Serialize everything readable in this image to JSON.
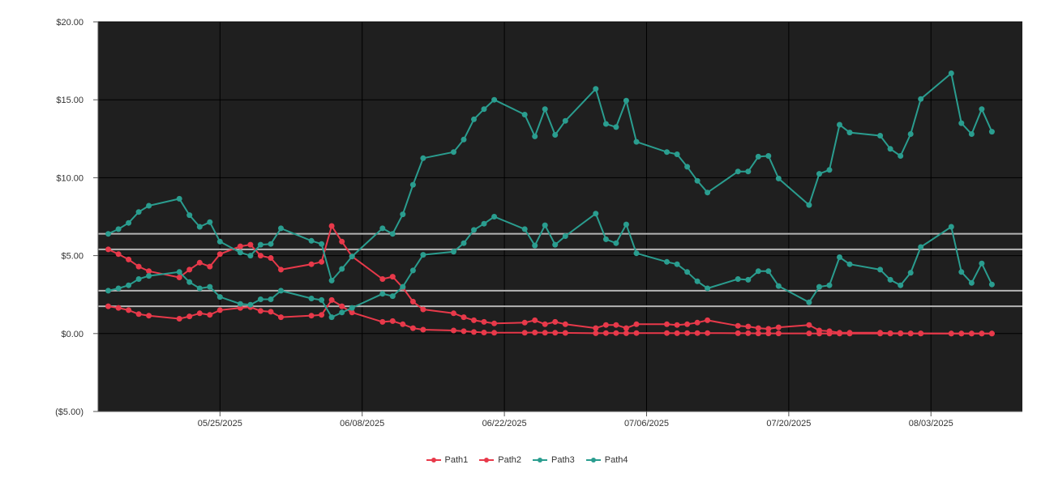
{
  "chart_data": {
    "type": "line",
    "title": "",
    "xlabel": "",
    "ylabel": "",
    "ylim": [
      -5,
      20
    ],
    "y_ticks": [
      -5,
      0,
      5,
      10,
      15,
      20
    ],
    "y_tick_labels": [
      "($5.00)",
      "$0.00",
      "$5.00",
      "$10.00",
      "$15.00",
      "$20.00"
    ],
    "x_range": [
      "2025-05-13",
      "2025-08-12"
    ],
    "x_ticks": [
      "2025-05-25",
      "2025-06-08",
      "2025-06-22",
      "2025-07-06",
      "2025-07-20",
      "2025-08-03"
    ],
    "x_tick_labels": [
      "05/25/2025",
      "06/08/2025",
      "06/22/2025",
      "07/06/2025",
      "07/20/2025",
      "08/03/2025"
    ],
    "grid": true,
    "legend_position": "bottom",
    "reference_lines": [
      6.4,
      5.4,
      2.75,
      1.75
    ],
    "background": "#1f1f1f",
    "series": [
      {
        "name": "Path1",
        "color": "#e8394a",
        "points": [
          [
            "2025-05-14",
            5.4
          ],
          [
            "2025-05-15",
            5.1
          ],
          [
            "2025-05-16",
            4.75
          ],
          [
            "2025-05-17",
            4.3
          ],
          [
            "2025-05-18",
            4.0
          ],
          [
            "2025-05-21",
            3.6
          ],
          [
            "2025-05-22",
            4.1
          ],
          [
            "2025-05-23",
            4.55
          ],
          [
            "2025-05-24",
            4.3
          ],
          [
            "2025-05-25",
            5.1
          ],
          [
            "2025-05-27",
            5.6
          ],
          [
            "2025-05-28",
            5.7
          ],
          [
            "2025-05-29",
            5.0
          ],
          [
            "2025-05-30",
            4.85
          ],
          [
            "2025-05-31",
            4.1
          ],
          [
            "2025-06-03",
            4.45
          ],
          [
            "2025-06-04",
            4.6
          ],
          [
            "2025-06-05",
            6.9
          ],
          [
            "2025-06-06",
            5.9
          ],
          [
            "2025-06-07",
            4.95
          ],
          [
            "2025-06-10",
            3.5
          ],
          [
            "2025-06-11",
            3.65
          ],
          [
            "2025-06-12",
            2.95
          ],
          [
            "2025-06-13",
            2.05
          ],
          [
            "2025-06-14",
            1.55
          ],
          [
            "2025-06-17",
            1.3
          ],
          [
            "2025-06-18",
            1.05
          ],
          [
            "2025-06-19",
            0.85
          ],
          [
            "2025-06-20",
            0.75
          ],
          [
            "2025-06-21",
            0.65
          ],
          [
            "2025-06-24",
            0.7
          ],
          [
            "2025-06-25",
            0.85
          ],
          [
            "2025-06-26",
            0.6
          ],
          [
            "2025-06-27",
            0.75
          ],
          [
            "2025-06-28",
            0.6
          ],
          [
            "2025-07-01",
            0.35
          ],
          [
            "2025-07-02",
            0.55
          ],
          [
            "2025-07-03",
            0.55
          ],
          [
            "2025-07-04",
            0.35
          ],
          [
            "2025-07-05",
            0.6
          ],
          [
            "2025-07-08",
            0.6
          ],
          [
            "2025-07-09",
            0.55
          ],
          [
            "2025-07-10",
            0.6
          ],
          [
            "2025-07-11",
            0.7
          ],
          [
            "2025-07-12",
            0.85
          ],
          [
            "2025-07-15",
            0.5
          ],
          [
            "2025-07-16",
            0.45
          ],
          [
            "2025-07-17",
            0.35
          ],
          [
            "2025-07-18",
            0.3
          ],
          [
            "2025-07-19",
            0.4
          ],
          [
            "2025-07-22",
            0.55
          ],
          [
            "2025-07-23",
            0.2
          ],
          [
            "2025-07-24",
            0.15
          ],
          [
            "2025-07-25",
            0.05
          ],
          [
            "2025-07-26",
            0.05
          ],
          [
            "2025-07-29",
            0.05
          ],
          [
            "2025-07-30",
            0.02
          ],
          [
            "2025-07-31",
            0.02
          ],
          [
            "2025-08-01",
            0.01
          ],
          [
            "2025-08-02",
            0.01
          ],
          [
            "2025-08-05",
            0.0
          ],
          [
            "2025-08-06",
            0.0
          ],
          [
            "2025-08-07",
            0.0
          ],
          [
            "2025-08-08",
            0.0
          ],
          [
            "2025-08-09",
            0.0
          ]
        ]
      },
      {
        "name": "Path2",
        "color": "#e8394a",
        "points": [
          [
            "2025-05-14",
            1.75
          ],
          [
            "2025-05-15",
            1.65
          ],
          [
            "2025-05-16",
            1.5
          ],
          [
            "2025-05-17",
            1.25
          ],
          [
            "2025-05-18",
            1.15
          ],
          [
            "2025-05-21",
            0.95
          ],
          [
            "2025-05-22",
            1.1
          ],
          [
            "2025-05-23",
            1.3
          ],
          [
            "2025-05-24",
            1.2
          ],
          [
            "2025-05-25",
            1.5
          ],
          [
            "2025-05-27",
            1.65
          ],
          [
            "2025-05-28",
            1.7
          ],
          [
            "2025-05-29",
            1.45
          ],
          [
            "2025-05-30",
            1.4
          ],
          [
            "2025-05-31",
            1.05
          ],
          [
            "2025-06-03",
            1.15
          ],
          [
            "2025-06-04",
            1.2
          ],
          [
            "2025-06-05",
            2.15
          ],
          [
            "2025-06-06",
            1.75
          ],
          [
            "2025-06-07",
            1.35
          ],
          [
            "2025-06-10",
            0.75
          ],
          [
            "2025-06-11",
            0.8
          ],
          [
            "2025-06-12",
            0.6
          ],
          [
            "2025-06-13",
            0.35
          ],
          [
            "2025-06-14",
            0.25
          ],
          [
            "2025-06-17",
            0.2
          ],
          [
            "2025-06-18",
            0.15
          ],
          [
            "2025-06-19",
            0.1
          ],
          [
            "2025-06-20",
            0.07
          ],
          [
            "2025-06-21",
            0.05
          ],
          [
            "2025-06-24",
            0.05
          ],
          [
            "2025-06-25",
            0.07
          ],
          [
            "2025-06-26",
            0.05
          ],
          [
            "2025-06-27",
            0.05
          ],
          [
            "2025-06-28",
            0.04
          ],
          [
            "2025-07-01",
            0.02
          ],
          [
            "2025-07-02",
            0.03
          ],
          [
            "2025-07-03",
            0.03
          ],
          [
            "2025-07-04",
            0.02
          ],
          [
            "2025-07-05",
            0.03
          ],
          [
            "2025-07-08",
            0.03
          ],
          [
            "2025-07-09",
            0.02
          ],
          [
            "2025-07-10",
            0.03
          ],
          [
            "2025-07-11",
            0.03
          ],
          [
            "2025-07-12",
            0.03
          ],
          [
            "2025-07-15",
            0.02
          ],
          [
            "2025-07-16",
            0.02
          ],
          [
            "2025-07-17",
            0.01
          ],
          [
            "2025-07-18",
            0.01
          ],
          [
            "2025-07-19",
            0.01
          ],
          [
            "2025-07-22",
            0.01
          ],
          [
            "2025-07-23",
            0.0
          ],
          [
            "2025-07-24",
            0.0
          ],
          [
            "2025-07-25",
            0.0
          ],
          [
            "2025-07-26",
            0.0
          ],
          [
            "2025-07-29",
            0.0
          ],
          [
            "2025-07-30",
            0.0
          ],
          [
            "2025-07-31",
            0.0
          ],
          [
            "2025-08-01",
            0.0
          ],
          [
            "2025-08-02",
            0.0
          ],
          [
            "2025-08-05",
            0.0
          ],
          [
            "2025-08-06",
            0.0
          ],
          [
            "2025-08-07",
            0.0
          ],
          [
            "2025-08-08",
            0.0
          ],
          [
            "2025-08-09",
            0.0
          ]
        ]
      },
      {
        "name": "Path3",
        "color": "#2a9d8f",
        "points": [
          [
            "2025-05-14",
            6.4
          ],
          [
            "2025-05-15",
            6.7
          ],
          [
            "2025-05-16",
            7.1
          ],
          [
            "2025-05-17",
            7.8
          ],
          [
            "2025-05-18",
            8.2
          ],
          [
            "2025-05-21",
            8.65
          ],
          [
            "2025-05-22",
            7.6
          ],
          [
            "2025-05-23",
            6.85
          ],
          [
            "2025-05-24",
            7.15
          ],
          [
            "2025-05-25",
            5.9
          ],
          [
            "2025-05-27",
            5.2
          ],
          [
            "2025-05-28",
            5.0
          ],
          [
            "2025-05-29",
            5.7
          ],
          [
            "2025-05-30",
            5.75
          ],
          [
            "2025-05-31",
            6.75
          ],
          [
            "2025-06-03",
            5.95
          ],
          [
            "2025-06-04",
            5.75
          ],
          [
            "2025-06-05",
            3.4
          ],
          [
            "2025-06-06",
            4.15
          ],
          [
            "2025-06-07",
            4.95
          ],
          [
            "2025-06-10",
            6.75
          ],
          [
            "2025-06-11",
            6.4
          ],
          [
            "2025-06-12",
            7.65
          ],
          [
            "2025-06-13",
            9.55
          ],
          [
            "2025-06-14",
            11.25
          ],
          [
            "2025-06-17",
            11.65
          ],
          [
            "2025-06-18",
            12.45
          ],
          [
            "2025-06-19",
            13.75
          ],
          [
            "2025-06-20",
            14.4
          ],
          [
            "2025-06-21",
            15.0
          ],
          [
            "2025-06-24",
            14.05
          ],
          [
            "2025-06-25",
            12.65
          ],
          [
            "2025-06-26",
            14.4
          ],
          [
            "2025-06-27",
            12.75
          ],
          [
            "2025-06-28",
            13.65
          ],
          [
            "2025-07-01",
            15.7
          ],
          [
            "2025-07-02",
            13.45
          ],
          [
            "2025-07-03",
            13.25
          ],
          [
            "2025-07-04",
            14.95
          ],
          [
            "2025-07-05",
            12.3
          ],
          [
            "2025-07-08",
            11.65
          ],
          [
            "2025-07-09",
            11.5
          ],
          [
            "2025-07-10",
            10.7
          ],
          [
            "2025-07-11",
            9.8
          ],
          [
            "2025-07-12",
            9.05
          ],
          [
            "2025-07-15",
            10.4
          ],
          [
            "2025-07-16",
            10.4
          ],
          [
            "2025-07-17",
            11.35
          ],
          [
            "2025-07-18",
            11.4
          ],
          [
            "2025-07-19",
            9.95
          ],
          [
            "2025-07-22",
            8.25
          ],
          [
            "2025-07-23",
            10.25
          ],
          [
            "2025-07-24",
            10.5
          ],
          [
            "2025-07-25",
            13.4
          ],
          [
            "2025-07-26",
            12.9
          ],
          [
            "2025-07-29",
            12.7
          ],
          [
            "2025-07-30",
            11.85
          ],
          [
            "2025-07-31",
            11.4
          ],
          [
            "2025-08-01",
            12.8
          ],
          [
            "2025-08-02",
            15.05
          ],
          [
            "2025-08-05",
            16.7
          ],
          [
            "2025-08-06",
            13.5
          ],
          [
            "2025-08-07",
            12.8
          ],
          [
            "2025-08-08",
            14.4
          ],
          [
            "2025-08-09",
            12.95
          ]
        ]
      },
      {
        "name": "Path4",
        "color": "#2a9d8f",
        "points": [
          [
            "2025-05-14",
            2.75
          ],
          [
            "2025-05-15",
            2.9
          ],
          [
            "2025-05-16",
            3.1
          ],
          [
            "2025-05-17",
            3.5
          ],
          [
            "2025-05-18",
            3.7
          ],
          [
            "2025-05-21",
            3.95
          ],
          [
            "2025-05-22",
            3.3
          ],
          [
            "2025-05-23",
            2.9
          ],
          [
            "2025-05-24",
            3.0
          ],
          [
            "2025-05-25",
            2.35
          ],
          [
            "2025-05-27",
            1.9
          ],
          [
            "2025-05-28",
            1.85
          ],
          [
            "2025-05-29",
            2.2
          ],
          [
            "2025-05-30",
            2.2
          ],
          [
            "2025-05-31",
            2.75
          ],
          [
            "2025-06-03",
            2.25
          ],
          [
            "2025-06-04",
            2.15
          ],
          [
            "2025-06-05",
            1.05
          ],
          [
            "2025-06-06",
            1.35
          ],
          [
            "2025-06-07",
            1.65
          ],
          [
            "2025-06-10",
            2.55
          ],
          [
            "2025-06-11",
            2.4
          ],
          [
            "2025-06-12",
            3.0
          ],
          [
            "2025-06-13",
            4.05
          ],
          [
            "2025-06-14",
            5.05
          ],
          [
            "2025-06-17",
            5.25
          ],
          [
            "2025-06-18",
            5.8
          ],
          [
            "2025-06-19",
            6.65
          ],
          [
            "2025-06-20",
            7.05
          ],
          [
            "2025-06-21",
            7.5
          ],
          [
            "2025-06-24",
            6.7
          ],
          [
            "2025-06-25",
            5.65
          ],
          [
            "2025-06-26",
            6.95
          ],
          [
            "2025-06-27",
            5.7
          ],
          [
            "2025-06-28",
            6.25
          ],
          [
            "2025-07-01",
            7.7
          ],
          [
            "2025-07-02",
            6.05
          ],
          [
            "2025-07-03",
            5.8
          ],
          [
            "2025-07-04",
            7.0
          ],
          [
            "2025-07-05",
            5.15
          ],
          [
            "2025-07-08",
            4.6
          ],
          [
            "2025-07-09",
            4.45
          ],
          [
            "2025-07-10",
            3.95
          ],
          [
            "2025-07-11",
            3.35
          ],
          [
            "2025-07-12",
            2.9
          ],
          [
            "2025-07-15",
            3.5
          ],
          [
            "2025-07-16",
            3.45
          ],
          [
            "2025-07-17",
            4.0
          ],
          [
            "2025-07-18",
            4.0
          ],
          [
            "2025-07-19",
            3.05
          ],
          [
            "2025-07-22",
            2.0
          ],
          [
            "2025-07-23",
            3.0
          ],
          [
            "2025-07-24",
            3.1
          ],
          [
            "2025-07-25",
            4.9
          ],
          [
            "2025-07-26",
            4.45
          ],
          [
            "2025-07-29",
            4.1
          ],
          [
            "2025-07-30",
            3.45
          ],
          [
            "2025-07-31",
            3.1
          ],
          [
            "2025-08-01",
            3.9
          ],
          [
            "2025-08-02",
            5.55
          ],
          [
            "2025-08-05",
            6.85
          ],
          [
            "2025-08-06",
            3.95
          ],
          [
            "2025-08-07",
            3.25
          ],
          [
            "2025-08-08",
            4.5
          ],
          [
            "2025-08-09",
            3.15
          ]
        ]
      }
    ]
  }
}
